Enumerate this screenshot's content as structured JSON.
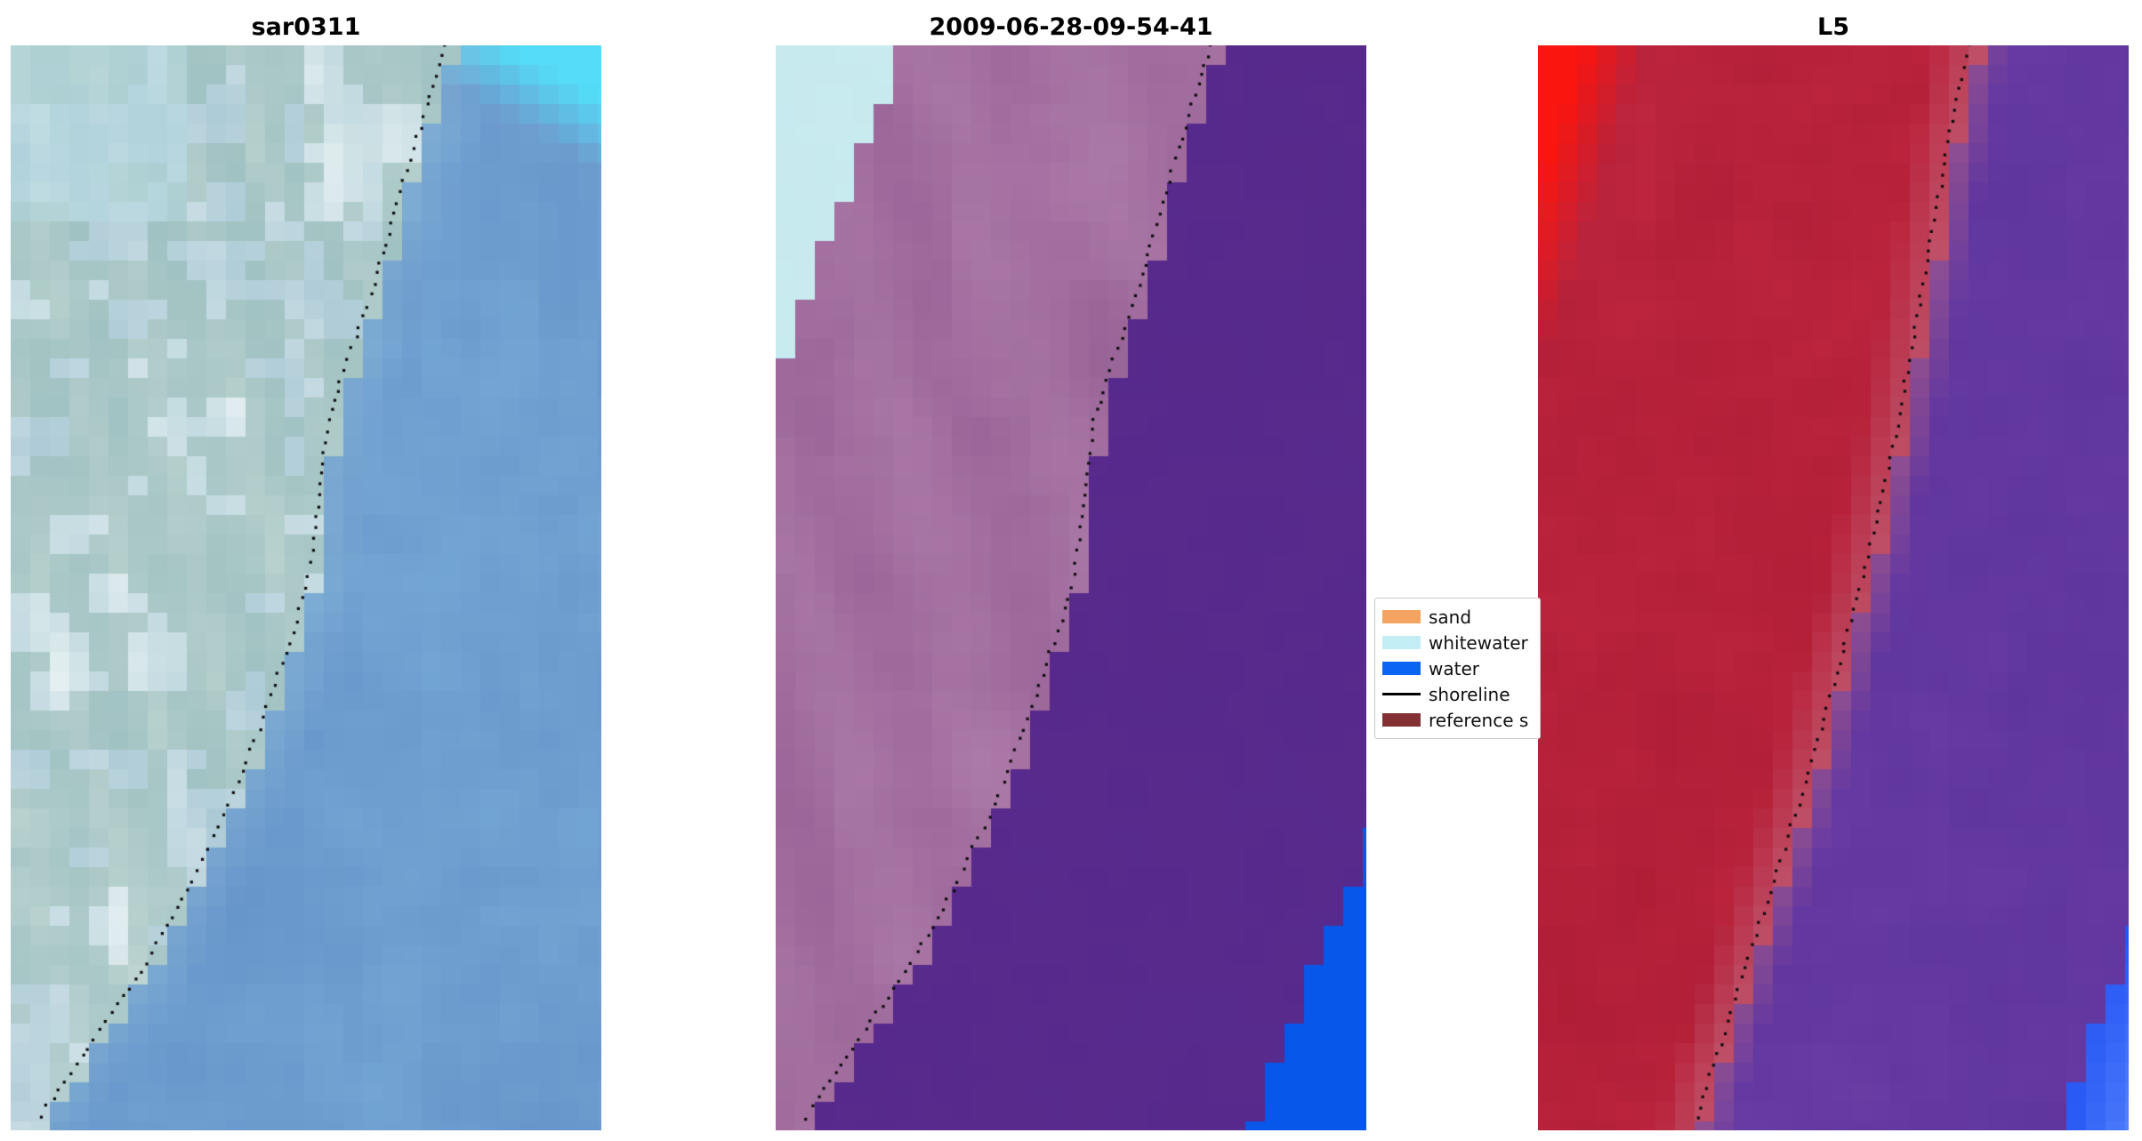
{
  "figure": {
    "background": "#ffffff"
  },
  "panels": [
    {
      "id": "sar0311",
      "title": "sar0311",
      "type": "sar",
      "seed": 11,
      "cell": 22,
      "shoreline": [
        [
          0.735,
          0
        ],
        [
          0.705,
          0.055
        ],
        [
          0.675,
          0.105
        ],
        [
          0.645,
          0.165
        ],
        [
          0.615,
          0.22
        ],
        [
          0.585,
          0.27
        ],
        [
          0.558,
          0.31
        ],
        [
          0.54,
          0.345
        ],
        [
          0.528,
          0.385
        ],
        [
          0.52,
          0.425
        ],
        [
          0.512,
          0.465
        ],
        [
          0.5,
          0.5
        ],
        [
          0.478,
          0.54
        ],
        [
          0.452,
          0.58
        ],
        [
          0.428,
          0.62
        ],
        [
          0.4,
          0.66
        ],
        [
          0.37,
          0.7
        ],
        [
          0.335,
          0.74
        ],
        [
          0.3,
          0.78
        ],
        [
          0.258,
          0.82
        ],
        [
          0.21,
          0.862
        ],
        [
          0.162,
          0.9
        ],
        [
          0.112,
          0.94
        ],
        [
          0.062,
          0.978
        ],
        [
          0.04,
          1
        ]
      ],
      "colors": {
        "water_dark": "#5b87c2",
        "water_light": "#7fb3dc",
        "cyan": "#55dcf8",
        "shallow": "#9fc9db",
        "land_base": "#8fb6c9",
        "land_light": "#e9f5f2",
        "land_white": "#ffffff",
        "land_green": "#7da898",
        "top_left": "#b9dce3",
        "dots": "#0b0b0b"
      }
    },
    {
      "id": "classified",
      "title": "2009-06-28-09-54-41",
      "type": "class",
      "seed": 23,
      "cell": 22,
      "shoreline": [
        [
          0.735,
          0
        ],
        [
          0.705,
          0.055
        ],
        [
          0.675,
          0.105
        ],
        [
          0.645,
          0.165
        ],
        [
          0.615,
          0.22
        ],
        [
          0.585,
          0.27
        ],
        [
          0.558,
          0.31
        ],
        [
          0.54,
          0.345
        ],
        [
          0.528,
          0.385
        ],
        [
          0.52,
          0.425
        ],
        [
          0.512,
          0.465
        ],
        [
          0.5,
          0.5
        ],
        [
          0.478,
          0.54
        ],
        [
          0.452,
          0.58
        ],
        [
          0.428,
          0.62
        ],
        [
          0.4,
          0.66
        ],
        [
          0.37,
          0.7
        ],
        [
          0.335,
          0.74
        ],
        [
          0.3,
          0.78
        ],
        [
          0.258,
          0.82
        ],
        [
          0.21,
          0.862
        ],
        [
          0.162,
          0.9
        ],
        [
          0.112,
          0.94
        ],
        [
          0.062,
          0.978
        ],
        [
          0.04,
          1
        ]
      ],
      "colors": {
        "whitewater": "#c3e9ee",
        "ww_w": 0.21,
        "ww_h": 0.3,
        "sand_dark": "#8f5a8e",
        "sand_light": "#b07cac",
        "sand_pale": "#bb8fb5",
        "water_purple": "#55288a",
        "water_purple2": "#5e3094",
        "blue": "#0757ea",
        "bl_y": 0.7,
        "bl_w": 0.23,
        "dots": "#0b0b0b"
      }
    },
    {
      "id": "l5",
      "title": "L5",
      "type": "l5",
      "seed": 37,
      "cell": 22,
      "shoreline": [
        [
          0.73,
          0
        ],
        [
          0.705,
          0.06
        ],
        [
          0.685,
          0.12
        ],
        [
          0.665,
          0.18
        ],
        [
          0.645,
          0.24
        ],
        [
          0.625,
          0.3
        ],
        [
          0.605,
          0.36
        ],
        [
          0.58,
          0.42
        ],
        [
          0.555,
          0.48
        ],
        [
          0.525,
          0.54
        ],
        [
          0.495,
          0.6
        ],
        [
          0.465,
          0.66
        ],
        [
          0.435,
          0.71
        ],
        [
          0.405,
          0.76
        ],
        [
          0.375,
          0.81
        ],
        [
          0.345,
          0.86
        ],
        [
          0.315,
          0.91
        ],
        [
          0.285,
          0.96
        ],
        [
          0.27,
          1
        ]
      ],
      "colors": {
        "red_dark": "#a91a33",
        "red_base": "#c62a42",
        "red_bright": "#fb150f",
        "corner_w": 0.18,
        "corner_h": 0.3,
        "band": "#c2687f",
        "purple_dark": "#59309a",
        "purple_base": "#6d41a8",
        "blue": "#1c4ef2",
        "blue_light": "#5f8cff",
        "bl_y": 0.78,
        "bl_w": 0.15,
        "dots": "#0b0b0b"
      }
    }
  ],
  "legend": {
    "entries": [
      {
        "label": "sand",
        "color": "#f4a460",
        "kind": "patch"
      },
      {
        "label": "whitewater",
        "color": "#c4eef6",
        "kind": "patch"
      },
      {
        "label": "water",
        "color": "#0b64f4",
        "kind": "patch"
      },
      {
        "label": "shoreline",
        "color": "#000000",
        "kind": "line"
      },
      {
        "label": "reference s",
        "color": "#833134",
        "kind": "patch"
      }
    ]
  },
  "chart_data": {
    "type": "heatmap",
    "panel_titles": [
      "sar0311",
      "2009-06-28-09-54-41",
      "L5"
    ],
    "legend_entries": [
      "sand",
      "whitewater",
      "water",
      "shoreline",
      "reference s"
    ],
    "shoreline_normalized_panels_1_2": [
      [
        0.735,
        0
      ],
      [
        0.705,
        0.055
      ],
      [
        0.675,
        0.105
      ],
      [
        0.645,
        0.165
      ],
      [
        0.615,
        0.22
      ],
      [
        0.585,
        0.27
      ],
      [
        0.558,
        0.31
      ],
      [
        0.54,
        0.345
      ],
      [
        0.528,
        0.385
      ],
      [
        0.52,
        0.425
      ],
      [
        0.512,
        0.465
      ],
      [
        0.5,
        0.5
      ],
      [
        0.478,
        0.54
      ],
      [
        0.452,
        0.58
      ],
      [
        0.428,
        0.62
      ],
      [
        0.4,
        0.66
      ],
      [
        0.37,
        0.7
      ],
      [
        0.335,
        0.74
      ],
      [
        0.3,
        0.78
      ],
      [
        0.258,
        0.82
      ],
      [
        0.21,
        0.862
      ],
      [
        0.162,
        0.9
      ],
      [
        0.112,
        0.94
      ],
      [
        0.062,
        0.978
      ],
      [
        0.04,
        1
      ]
    ],
    "shoreline_normalized_panel_3": [
      [
        0.73,
        0
      ],
      [
        0.705,
        0.06
      ],
      [
        0.685,
        0.12
      ],
      [
        0.665,
        0.18
      ],
      [
        0.645,
        0.24
      ],
      [
        0.625,
        0.3
      ],
      [
        0.605,
        0.36
      ],
      [
        0.58,
        0.42
      ],
      [
        0.555,
        0.48
      ],
      [
        0.525,
        0.54
      ],
      [
        0.495,
        0.6
      ],
      [
        0.465,
        0.66
      ],
      [
        0.435,
        0.71
      ],
      [
        0.405,
        0.76
      ],
      [
        0.375,
        0.81
      ],
      [
        0.345,
        0.86
      ],
      [
        0.315,
        0.91
      ],
      [
        0.285,
        0.96
      ],
      [
        0.27,
        1
      ]
    ],
    "legend_position": "center-right between panel 2 and panel 3"
  }
}
